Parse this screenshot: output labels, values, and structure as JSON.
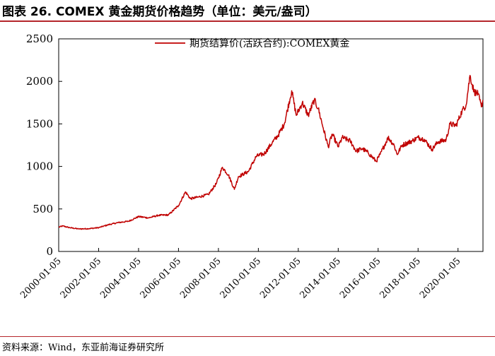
{
  "header": {
    "title": "图表 26. COMEX 黄金期货价格趋势（单位：美元/盎司）"
  },
  "footer": {
    "source": "资料来源：Wind，东亚前海证券研究所"
  },
  "chart_data": {
    "type": "line",
    "title": "图表 26. COMEX 黄金期货价格趋势（单位：美元/盎司）",
    "xlabel": "",
    "ylabel": "",
    "ylim": [
      0,
      2500
    ],
    "yticks": [
      0,
      500,
      1000,
      1500,
      2000,
      2500
    ],
    "xlim": [
      2000.0,
      2021.25
    ],
    "xtick_labels": [
      "2000-01-05",
      "2002-01-05",
      "2004-01-05",
      "2006-01-05",
      "2008-01-05",
      "2010-01-05",
      "2012-01-05",
      "2014-01-05",
      "2016-01-05",
      "2018-01-05",
      "2020-01-05"
    ],
    "xtick_values": [
      2000,
      2002,
      2004,
      2006,
      2008,
      2010,
      2012,
      2014,
      2016,
      2018,
      2020
    ],
    "legend_position": "top-center",
    "series": [
      {
        "name": "期货结算价(活跃合约):COMEX黄金",
        "color": "#c00000",
        "points": [
          [
            2000.0,
            285
          ],
          [
            2000.2,
            300
          ],
          [
            2000.5,
            282
          ],
          [
            2001.0,
            265
          ],
          [
            2001.5,
            268
          ],
          [
            2002.0,
            280
          ],
          [
            2002.5,
            315
          ],
          [
            2003.0,
            340
          ],
          [
            2003.5,
            355
          ],
          [
            2004.0,
            410
          ],
          [
            2004.5,
            395
          ],
          [
            2005.0,
            425
          ],
          [
            2005.5,
            430
          ],
          [
            2006.0,
            540
          ],
          [
            2006.35,
            700
          ],
          [
            2006.6,
            620
          ],
          [
            2007.0,
            640
          ],
          [
            2007.5,
            670
          ],
          [
            2007.9,
            800
          ],
          [
            2008.2,
            990
          ],
          [
            2008.5,
            900
          ],
          [
            2008.8,
            730
          ],
          [
            2009.0,
            880
          ],
          [
            2009.5,
            940
          ],
          [
            2009.9,
            1120
          ],
          [
            2010.3,
            1150
          ],
          [
            2010.7,
            1280
          ],
          [
            2011.0,
            1370
          ],
          [
            2011.3,
            1500
          ],
          [
            2011.67,
            1890
          ],
          [
            2011.9,
            1600
          ],
          [
            2012.2,
            1750
          ],
          [
            2012.5,
            1600
          ],
          [
            2012.8,
            1780
          ],
          [
            2013.0,
            1680
          ],
          [
            2013.25,
            1450
          ],
          [
            2013.5,
            1230
          ],
          [
            2013.7,
            1380
          ],
          [
            2014.0,
            1230
          ],
          [
            2014.2,
            1340
          ],
          [
            2014.6,
            1300
          ],
          [
            2014.9,
            1180
          ],
          [
            2015.2,
            1210
          ],
          [
            2015.5,
            1160
          ],
          [
            2015.9,
            1060
          ],
          [
            2016.1,
            1140
          ],
          [
            2016.5,
            1340
          ],
          [
            2016.8,
            1250
          ],
          [
            2016.95,
            1140
          ],
          [
            2017.2,
            1250
          ],
          [
            2017.7,
            1300
          ],
          [
            2018.0,
            1340
          ],
          [
            2018.3,
            1320
          ],
          [
            2018.7,
            1200
          ],
          [
            2019.0,
            1290
          ],
          [
            2019.4,
            1310
          ],
          [
            2019.6,
            1500
          ],
          [
            2019.9,
            1480
          ],
          [
            2020.2,
            1650
          ],
          [
            2020.4,
            1720
          ],
          [
            2020.6,
            2070
          ],
          [
            2020.8,
            1880
          ],
          [
            2021.0,
            1850
          ],
          [
            2021.17,
            1700
          ],
          [
            2021.25,
            1780
          ]
        ]
      }
    ]
  }
}
